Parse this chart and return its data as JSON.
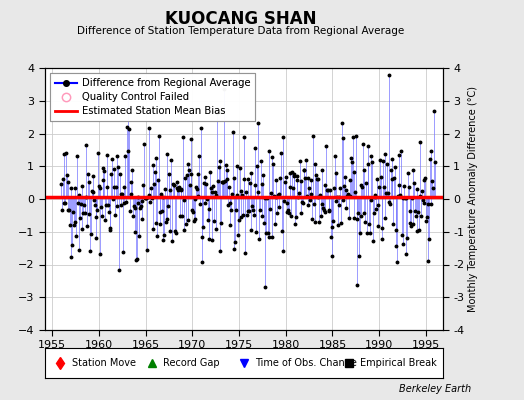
{
  "title": "KUOCANG SHAN",
  "subtitle": "Difference of Station Temperature Data from Regional Average",
  "ylabel_right": "Monthly Temperature Anomaly Difference (°C)",
  "xlim": [
    1954.2,
    1996.8
  ],
  "ylim": [
    -4,
    4
  ],
  "yticks": [
    -4,
    -3,
    -2,
    -1,
    0,
    1,
    2,
    3,
    4
  ],
  "xticks": [
    1955,
    1960,
    1965,
    1970,
    1975,
    1980,
    1985,
    1990,
    1995
  ],
  "mean_bias": 0.07,
  "line_color": "#7777FF",
  "bias_color": "#FF0000",
  "bg_color": "#E8E8E8",
  "plot_bg_color": "#FFFFFF",
  "grid_color": "#CCCCCC",
  "watermark": "Berkeley Earth",
  "seed": 42,
  "start_year": 1956,
  "end_year": 1995
}
